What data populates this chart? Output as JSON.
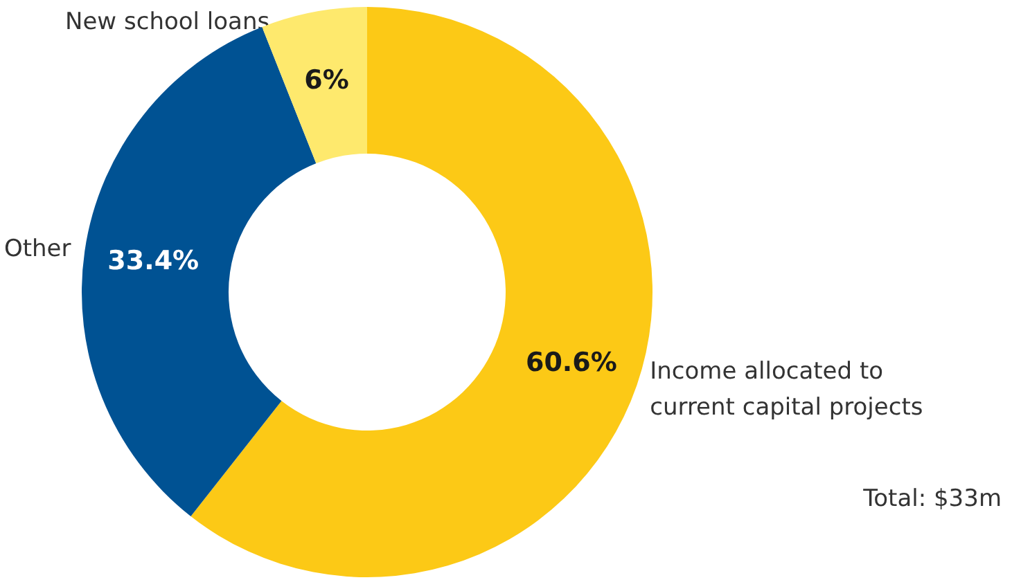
{
  "chart_data": {
    "type": "donut",
    "categories": [
      "Income allocated to\ncurrent capital projects",
      "Other",
      "New school loans"
    ],
    "values": [
      60.6,
      33.4,
      6
    ],
    "colors": [
      "#fcc916",
      "#005293",
      "#fee96d"
    ],
    "value_labels": [
      "60.6%",
      "33.4%",
      "6%"
    ],
    "annotations": [
      "Total: $33m"
    ],
    "legend": false
  }
}
